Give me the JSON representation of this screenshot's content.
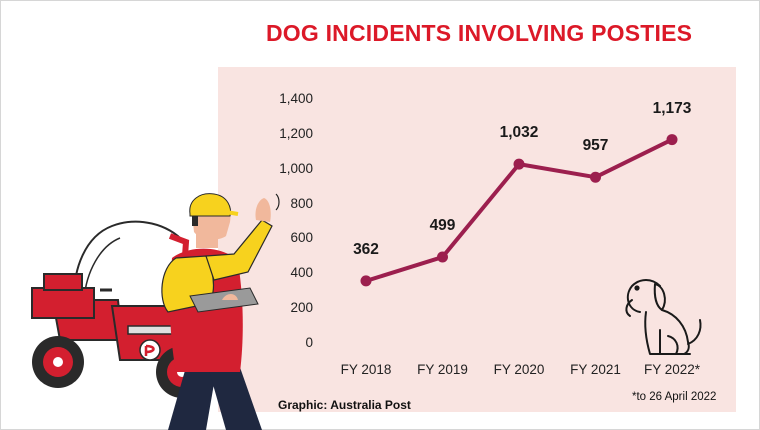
{
  "chart_data": {
    "type": "line",
    "title": "DOG INCIDENTS INVOLVING POSTIES",
    "categories": [
      "FY 2018",
      "FY 2019",
      "FY 2020",
      "FY 2021",
      "FY 2022*"
    ],
    "values": [
      362,
      499,
      1032,
      957,
      1173
    ],
    "data_labels": [
      "362",
      "499",
      "1,032",
      "957",
      "1,173"
    ],
    "y_ticks": [
      "0",
      "200",
      "400",
      "600",
      "800",
      "1,000",
      "1,200",
      "1,400"
    ],
    "ylim": [
      0,
      1400
    ],
    "grid": false,
    "line_color": "#9c1f4e"
  },
  "source": "Graphic: Australia Post",
  "footnote": "*to 26 April 2022",
  "colors": {
    "title": "#dc1928",
    "panel": "#f9e4e1",
    "scooter": "#d31f2f",
    "jacket": "#f7d21e",
    "pants": "#1f2840"
  },
  "icons": [
    "scooter-illustration",
    "postie-illustration",
    "dog-icon"
  ]
}
